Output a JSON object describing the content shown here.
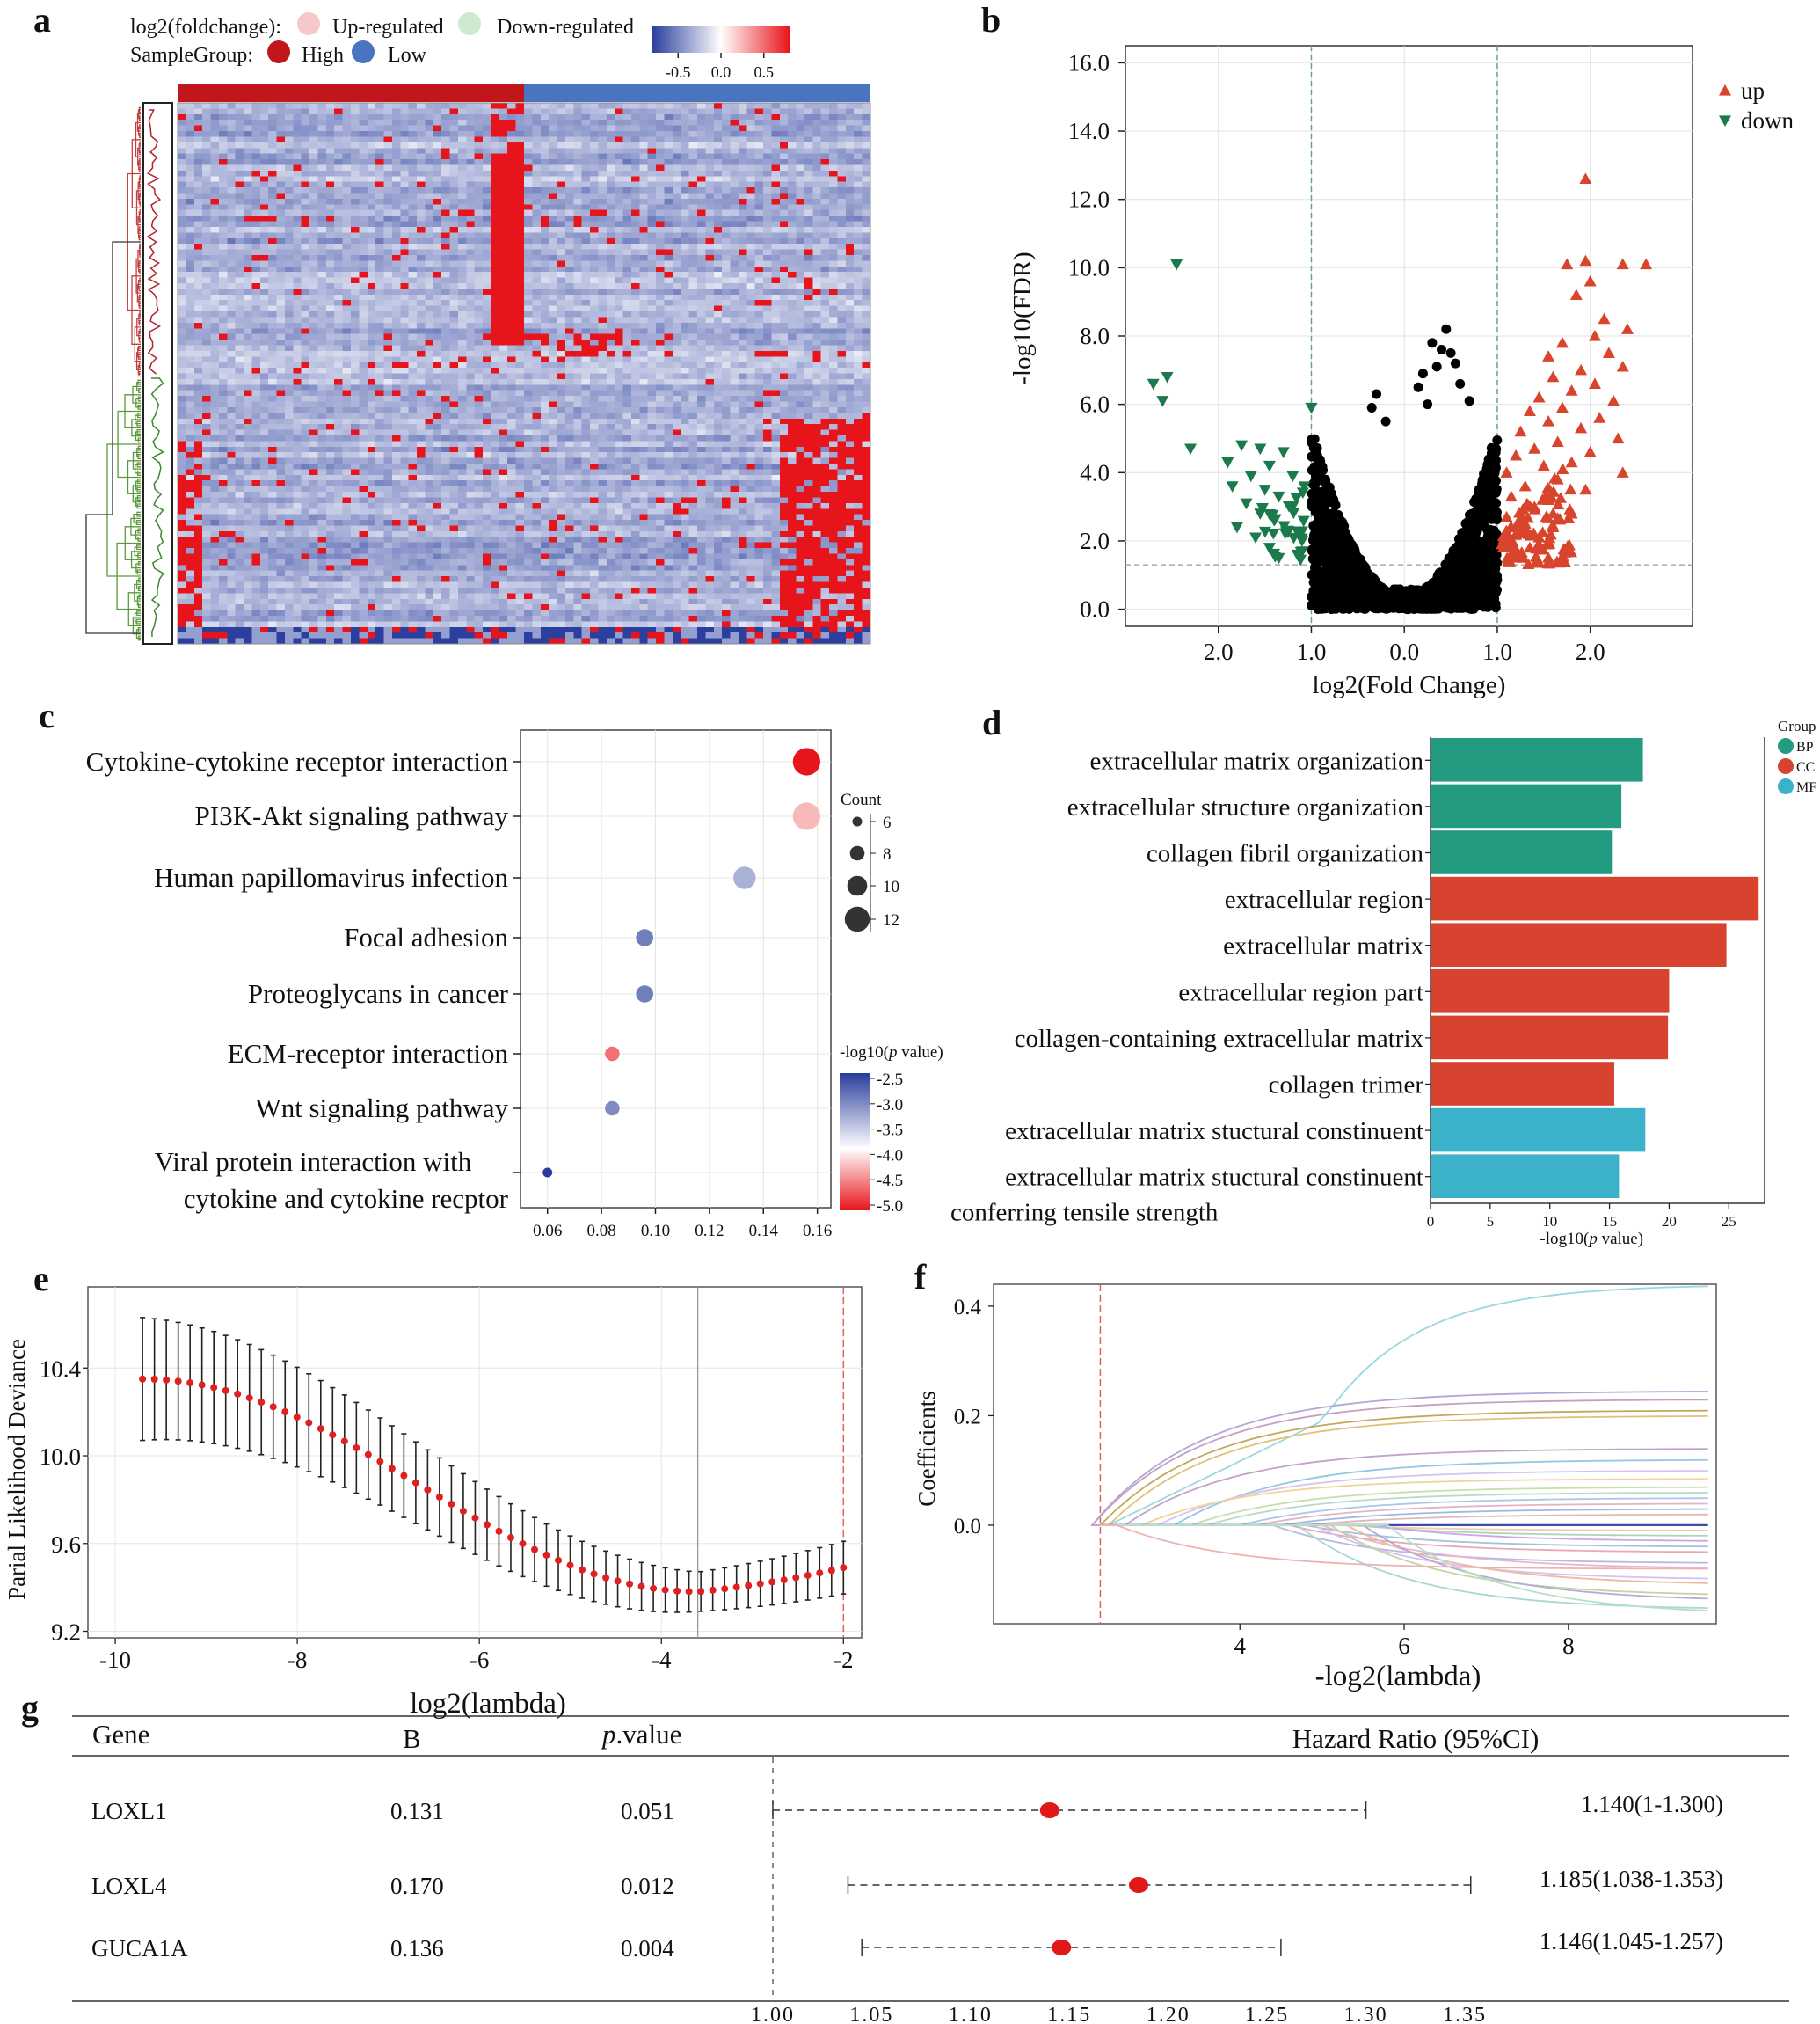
{
  "panel_labels": [
    "a",
    "b",
    "c",
    "d",
    "e",
    "f",
    "g"
  ],
  "chart_data": [
    {
      "panel": "a",
      "type": "heatmap",
      "legend": {
        "foldchange_label": "log2(foldchange):",
        "foldchange_items": [
          {
            "label": "Up-regulated",
            "color": "#f6c9c9"
          },
          {
            "label": "Down-regulated",
            "color": "#cde9cf"
          }
        ],
        "group_label": "SampleGroup:",
        "group_items": [
          {
            "label": "High",
            "color": "#c0161c"
          },
          {
            "label": "Low",
            "color": "#4a74c0"
          }
        ]
      },
      "colorbar": {
        "ticks": [
          "-0.5",
          "0.0",
          "0.5"
        ],
        "range": [
          -0.8,
          0.8
        ],
        "low_color": "#2b3f9e",
        "mid_color": "#ffffff",
        "high_color": "#e8141b"
      },
      "sample_groups": [
        "High",
        "Low"
      ],
      "row_clusters": [
        "Up-regulated",
        "Down-regulated"
      ]
    },
    {
      "panel": "b",
      "type": "scatter",
      "xlabel": "log2(Fold Change)",
      "ylabel": "-log10(FDR)",
      "yticks": [
        "0.0",
        "2.0",
        "4.0",
        "6.0",
        "8.0",
        "10.0",
        "12.0",
        "14.0",
        "16.0"
      ],
      "xticks": [
        {
          "v": -2.0,
          "label": "2.0"
        },
        {
          "v": -1.0,
          "label": "1.0"
        },
        {
          "v": 0.0,
          "label": "0.0"
        },
        {
          "v": 1.0,
          "label": "1.0"
        },
        {
          "v": 2.0,
          "label": "2.0"
        }
      ],
      "xlim": [
        -3.0,
        3.1
      ],
      "ylim": [
        -0.5,
        16.5
      ],
      "thresholds": {
        "log2fc": [
          -1.0,
          1.0
        ],
        "fdr": 1.3
      },
      "legend": [
        {
          "label": "up",
          "color": "#d8442c",
          "marker": "triangle-up"
        },
        {
          "label": "down",
          "color": "#1a7a4c",
          "marker": "triangle-down"
        }
      ],
      "up_points": [
        [
          1.95,
          12.6
        ],
        [
          2.6,
          10.1
        ],
        [
          2.35,
          10.1
        ],
        [
          1.95,
          10.2
        ],
        [
          1.75,
          10.1
        ],
        [
          2.0,
          9.6
        ],
        [
          1.85,
          9.2
        ],
        [
          2.15,
          8.5
        ],
        [
          2.4,
          8.2
        ],
        [
          2.05,
          8.0
        ],
        [
          1.7,
          7.8
        ],
        [
          2.2,
          7.5
        ],
        [
          1.55,
          7.4
        ],
        [
          2.35,
          7.1
        ],
        [
          1.9,
          7.0
        ],
        [
          1.6,
          6.8
        ],
        [
          2.05,
          6.6
        ],
        [
          1.8,
          6.4
        ],
        [
          1.45,
          6.2
        ],
        [
          2.25,
          6.1
        ],
        [
          1.7,
          5.9
        ],
        [
          1.35,
          5.8
        ],
        [
          2.1,
          5.6
        ],
        [
          1.55,
          5.5
        ],
        [
          1.9,
          5.3
        ],
        [
          1.25,
          5.2
        ],
        [
          2.3,
          5.0
        ],
        [
          1.65,
          4.9
        ],
        [
          1.4,
          4.7
        ],
        [
          2.0,
          4.6
        ],
        [
          1.2,
          4.5
        ],
        [
          1.8,
          4.3
        ],
        [
          1.5,
          4.2
        ],
        [
          2.35,
          4.0
        ],
        [
          1.1,
          4.0
        ],
        [
          1.65,
          3.8
        ],
        [
          1.3,
          3.6
        ],
        [
          1.95,
          3.5
        ],
        [
          1.15,
          3.3
        ],
        [
          1.55,
          3.2
        ],
        [
          1.4,
          3.0
        ],
        [
          1.8,
          2.8
        ],
        [
          1.1,
          2.7
        ],
        [
          1.3,
          2.5
        ],
        [
          1.6,
          2.4
        ],
        [
          1.2,
          2.2
        ],
        [
          1.45,
          2.1
        ],
        [
          1.05,
          1.9
        ],
        [
          1.35,
          1.8
        ],
        [
          1.15,
          1.6
        ]
      ],
      "down_points": [
        [
          -2.45,
          10.1
        ],
        [
          -2.7,
          6.6
        ],
        [
          -2.55,
          6.8
        ],
        [
          -2.6,
          6.1
        ],
        [
          -2.3,
          4.7
        ],
        [
          -1.0,
          5.9
        ],
        [
          -1.75,
          4.8
        ],
        [
          -1.55,
          4.7
        ],
        [
          -1.3,
          4.6
        ],
        [
          -1.9,
          4.3
        ],
        [
          -1.45,
          4.2
        ],
        [
          -1.65,
          3.9
        ],
        [
          -1.2,
          3.9
        ],
        [
          -1.85,
          3.6
        ],
        [
          -1.5,
          3.5
        ],
        [
          -1.35,
          3.3
        ],
        [
          -1.7,
          3.1
        ],
        [
          -1.2,
          3.0
        ],
        [
          -1.55,
          2.8
        ],
        [
          -1.4,
          2.6
        ],
        [
          -1.8,
          2.4
        ],
        [
          -1.25,
          2.3
        ],
        [
          -1.6,
          2.1
        ],
        [
          -1.1,
          2.0
        ],
        [
          -1.45,
          1.8
        ],
        [
          -1.15,
          1.6
        ],
        [
          -1.35,
          1.5
        ]
      ]
    },
    {
      "panel": "c",
      "type": "scatter",
      "subtype": "bubble",
      "categories": [
        "Cytokine-cytokine receptor interaction",
        "PI3K-Akt signaling pathway",
        "Human papillomavirus infection",
        "Focal adhesion",
        "Proteoglycans in cancer",
        "ECM-receptor interaction",
        "Wnt signaling pathway",
        "Viral protein interaction with cytokine and cytokine recptor"
      ],
      "x": [
        0.156,
        0.156,
        0.133,
        0.096,
        0.096,
        0.084,
        0.084,
        0.06
      ],
      "count": [
        13,
        13,
        11,
        9,
        9,
        8,
        8,
        6
      ],
      "neglog10p": [
        -5.0,
        -4.3,
        -3.4,
        -3.0,
        -3.0,
        -4.6,
        -3.1,
        -2.5
      ],
      "xticks": [
        "0.06",
        "0.08",
        "0.10",
        "0.12",
        "0.14",
        "0.16"
      ],
      "xlim": [
        0.05,
        0.165
      ],
      "size_legend": {
        "title": "Count",
        "values": [
          "6",
          "8",
          "10",
          "12"
        ]
      },
      "color_legend": {
        "title_pre": "-log10(",
        "title_italic": "p",
        "title_post": " value)",
        "ticks": [
          "-2.5",
          "-3.0",
          "-3.5",
          "-4.0",
          "-4.5",
          "-5.0"
        ]
      }
    },
    {
      "panel": "d",
      "type": "bar",
      "orientation": "horizontal",
      "categories": [
        "extracellular matrix organization",
        "extracellular structure organization",
        "collagen fibril organization",
        "extracellular region",
        "extracellular matrix",
        "extracellular region part",
        "collagen-containing extracellular matrix",
        "collagen trimer",
        "extracellular matrix stuctural constinuent",
        "extracellular matrix stuctural constinuent conferring tensile strength"
      ],
      "category_lines": [
        [
          "extracellular matrix organization"
        ],
        [
          "extracellular structure organization"
        ],
        [
          "collagen fibril organization"
        ],
        [
          "extracellular region"
        ],
        [
          "extracellular matrix"
        ],
        [
          "extracellular region part"
        ],
        [
          "collagen-containing extracellular matrix"
        ],
        [
          "collagen trimer"
        ],
        [
          "extracellular matrix stuctural constinuent"
        ],
        [
          "extracellular matrix stuctural constinuent",
          "conferring tensile strength"
        ]
      ],
      "values": [
        17.8,
        16.0,
        15.2,
        27.5,
        24.8,
        20.0,
        19.9,
        15.4,
        18.0,
        15.8
      ],
      "groups": [
        "BP",
        "BP",
        "BP",
        "CC",
        "CC",
        "CC",
        "CC",
        "CC",
        "MF",
        "MF"
      ],
      "xticks": [
        "0",
        "5",
        "10",
        "15",
        "20",
        "25"
      ],
      "xlim": [
        0,
        28
      ],
      "xlabel_pre": "-log10(",
      "xlabel_italic": "p",
      "xlabel_post": " value)",
      "legend_title": "Group",
      "legend": [
        {
          "label": "BP",
          "color": "#239b80"
        },
        {
          "label": "CC",
          "color": "#d8432f"
        },
        {
          "label": "MF",
          "color": "#3bb2c9"
        }
      ]
    },
    {
      "panel": "e",
      "type": "scatter",
      "subtype": "errorbar",
      "xlabel": "log2(lambda)",
      "ylabel": "Parial Likelihood Deviance",
      "xticks": [
        "-10",
        "-8",
        "-6",
        "-4",
        "-2"
      ],
      "yticks": [
        "9.2",
        "9.6",
        "10.0",
        "10.4"
      ],
      "xlim": [
        -10.3,
        -1.8
      ],
      "ylim": [
        9.17,
        10.77
      ],
      "x_start": -9.7,
      "x_end": -2.0,
      "n_points": 60,
      "y_start": 10.35,
      "y_min": 9.38,
      "x_at_min": -3.6,
      "y_end": 9.49,
      "err_start": 0.28,
      "err_min": 0.09,
      "vlines": [
        -3.6,
        -2.0
      ]
    },
    {
      "panel": "f",
      "type": "line",
      "xlabel": "-log2(lambda)",
      "ylabel": "Coefficients",
      "xticks": [
        "4",
        "6",
        "8"
      ],
      "yticks": [
        "0.0",
        "0.2",
        "0.4"
      ],
      "xlim": [
        1.0,
        9.8
      ],
      "ylim": [
        -0.18,
        0.44
      ],
      "vline": 2.3,
      "series_final": [
        0.44,
        0.245,
        0.23,
        0.21,
        0.2,
        0.14,
        0.12,
        0.1,
        0.085,
        0.07,
        0.06,
        0.05,
        0.04,
        0.03,
        0.02,
        0.0,
        -0.01,
        -0.02,
        -0.03,
        -0.04,
        -0.05,
        -0.07,
        -0.08,
        -0.1,
        -0.11,
        -0.13,
        -0.14,
        -0.155,
        -0.165,
        -0.08
      ],
      "series_start": [
        2.4,
        2.2,
        2.2,
        2.3,
        2.4,
        2.6,
        3.2,
        3.0,
        2.8,
        3.4,
        3.6,
        4.0,
        4.2,
        4.5,
        4.8,
        5.0,
        5.2,
        5.4,
        5.6,
        4.8,
        4.6,
        4.4,
        5.0,
        4.9,
        5.3,
        5.1,
        5.5,
        4.7,
        5.8,
        2.5
      ],
      "series_colors": [
        "#9ad8e0",
        "#b3a4d6",
        "#c4a0c0",
        "#c2a85a",
        "#e2c07a",
        "#c1a3c9",
        "#93c7e3",
        "#d7c3ec",
        "#f1d39a",
        "#c6e0a8",
        "#b8d8c8",
        "#a8c8e8",
        "#e4b4c4",
        "#9fb9e5",
        "#dfb9b4",
        "#3a4ea8",
        "#f4c8b8",
        "#a6d8b8",
        "#c8a8e8",
        "#9ec4d8",
        "#e8a8b8",
        "#b8b8e0",
        "#e6b8d0",
        "#d8c0f0",
        "#f0b8a0",
        "#c0d8a0",
        "#b8a8d8",
        "#a8d8d0",
        "#b8e0c8",
        "#f0b0b0"
      ]
    },
    {
      "panel": "g",
      "type": "table",
      "subtype": "forest",
      "headers": {
        "gene": "Gene",
        "b": "B",
        "p_italic": "p",
        "p_rest": ".value",
        "hr": "Hazard Ratio (95%CI)"
      },
      "rows": [
        {
          "gene": "LOXL1",
          "b": "0.131",
          "p": "0.051",
          "hr": 1.14,
          "lo": 1.0,
          "hi": 1.3,
          "hr_text": "1.140(1-1.300)"
        },
        {
          "gene": "LOXL4",
          "b": "0.170",
          "p": "0.012",
          "hr": 1.185,
          "lo": 1.038,
          "hi": 1.353,
          "hr_text": "1.185(1.038-1.353)"
        },
        {
          "gene": "GUCA1A",
          "b": "0.136",
          "p": "0.004",
          "hr": 1.146,
          "lo": 1.045,
          "hi": 1.257,
          "hr_text": "1.146(1.045-1.257)"
        }
      ],
      "xticks": [
        "1.00",
        "1.05",
        "1.10",
        "1.15",
        "1.20",
        "1.25",
        "1.30",
        "1.35"
      ],
      "xlim": [
        1.0,
        1.35
      ],
      "ref_line": 1.0
    }
  ]
}
